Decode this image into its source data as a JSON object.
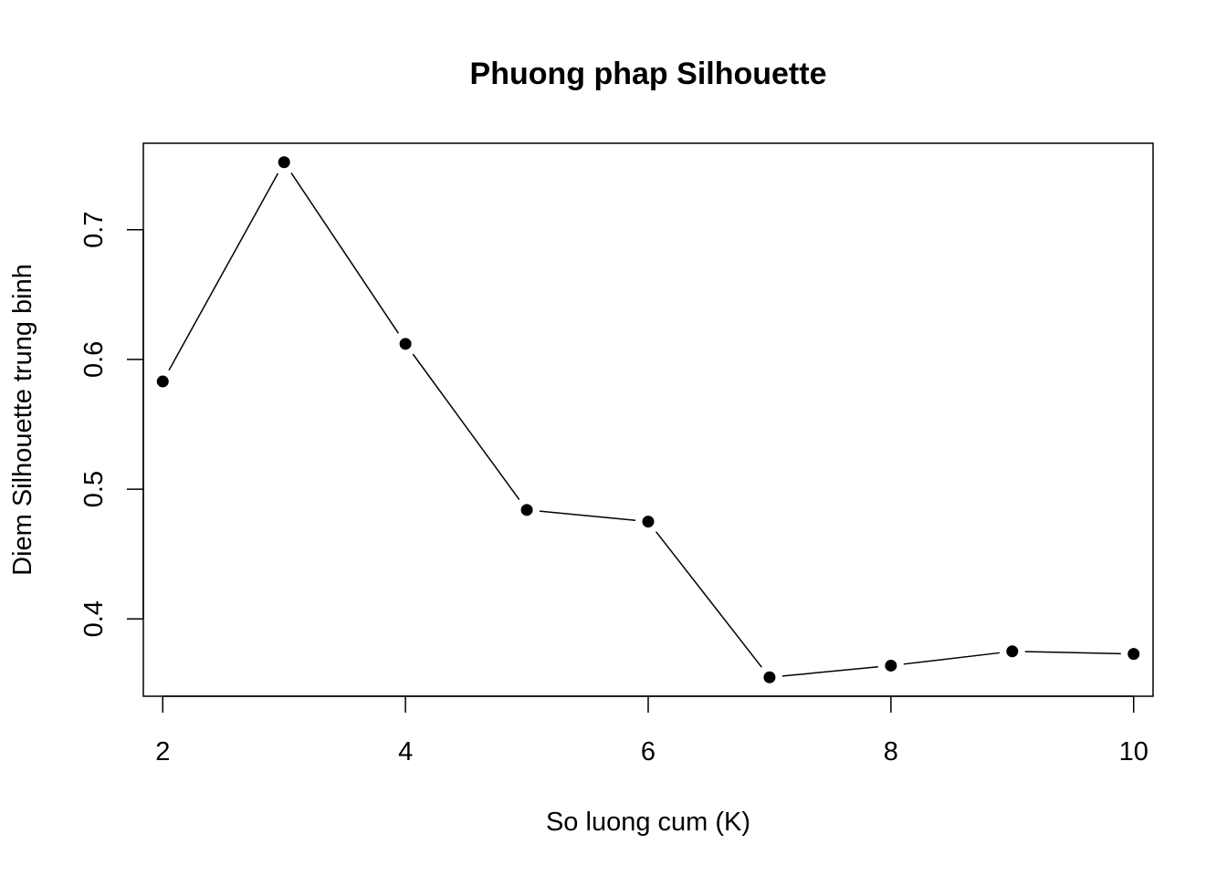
{
  "chart_data": {
    "type": "line",
    "title": "Phuong phap Silhouette",
    "xlabel": "So luong cum (K)",
    "ylabel": "Diem Silhouette trung binh",
    "x": [
      2,
      3,
      4,
      5,
      6,
      7,
      8,
      9,
      10
    ],
    "y": [
      0.583,
      0.752,
      0.612,
      0.484,
      0.475,
      0.355,
      0.364,
      0.375,
      0.373
    ],
    "xlim": [
      1.84,
      10.16
    ],
    "ylim": [
      0.3404,
      0.7666
    ],
    "x_ticks": [
      2,
      4,
      6,
      8,
      10
    ],
    "y_ticks": [
      0.4,
      0.5,
      0.6,
      0.7
    ],
    "x_tick_labels": [
      "2",
      "4",
      "6",
      "8",
      "10"
    ],
    "y_tick_labels": [
      "0.4",
      "0.5",
      "0.6",
      "0.7"
    ],
    "grid": false,
    "marker": "filled-circle",
    "line_color": "#000000",
    "marker_color": "#000000"
  }
}
